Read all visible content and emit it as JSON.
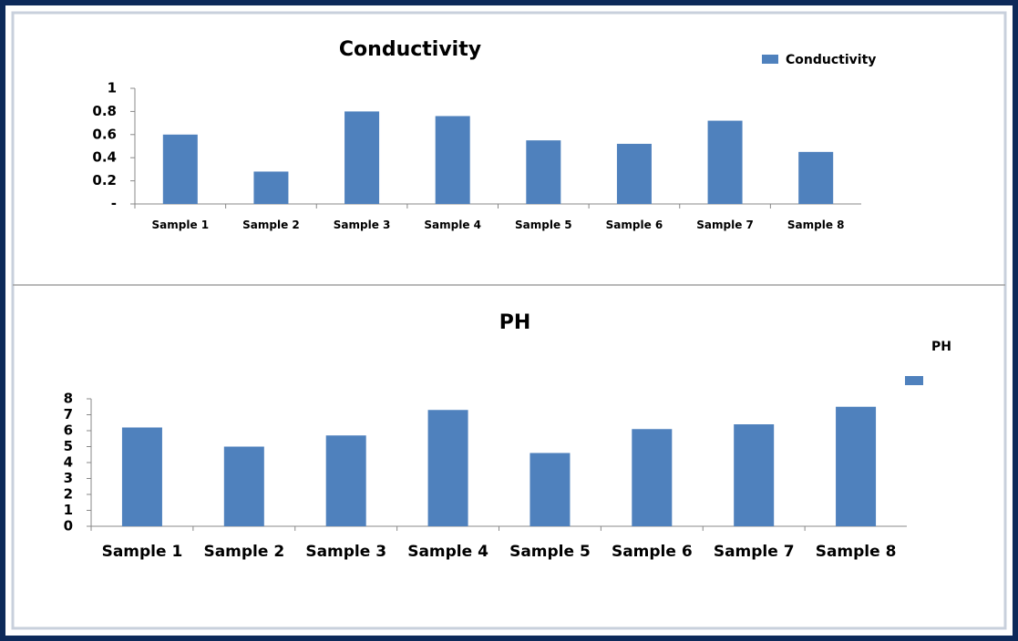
{
  "chart_data": [
    {
      "type": "bar",
      "title": "Conductivity",
      "categories": [
        "Sample 1",
        "Sample 2",
        "Sample 3",
        "Sample 4",
        "Sample 5",
        "Sample 6",
        "Sample 7",
        "Sample 8"
      ],
      "series": [
        {
          "name": "Conductivity",
          "color": "#4f81bd",
          "values": [
            0.6,
            0.28,
            0.8,
            0.76,
            0.55,
            0.52,
            0.72,
            0.45
          ]
        }
      ],
      "ylim": [
        0,
        1
      ],
      "yticks": [
        {
          "value": 0,
          "label": "-"
        },
        0.2,
        0.4,
        0.6,
        0.8,
        1
      ],
      "grid": false,
      "legend": "top-right"
    },
    {
      "type": "bar",
      "title": "PH",
      "categories": [
        "Sample 1",
        "Sample 2",
        "Sample 3",
        "Sample 4",
        "Sample 5",
        "Sample 6",
        "Sample 7",
        "Sample 8"
      ],
      "series": [
        {
          "name": "PH",
          "color": "#4f81bd",
          "values": [
            6.2,
            5.0,
            5.7,
            7.3,
            4.6,
            6.1,
            6.4,
            7.5
          ]
        }
      ],
      "ylim": [
        0,
        8
      ],
      "yticks": [
        0,
        1,
        2,
        3,
        4,
        5,
        6,
        7,
        8
      ],
      "grid": false,
      "legend": "right"
    }
  ]
}
